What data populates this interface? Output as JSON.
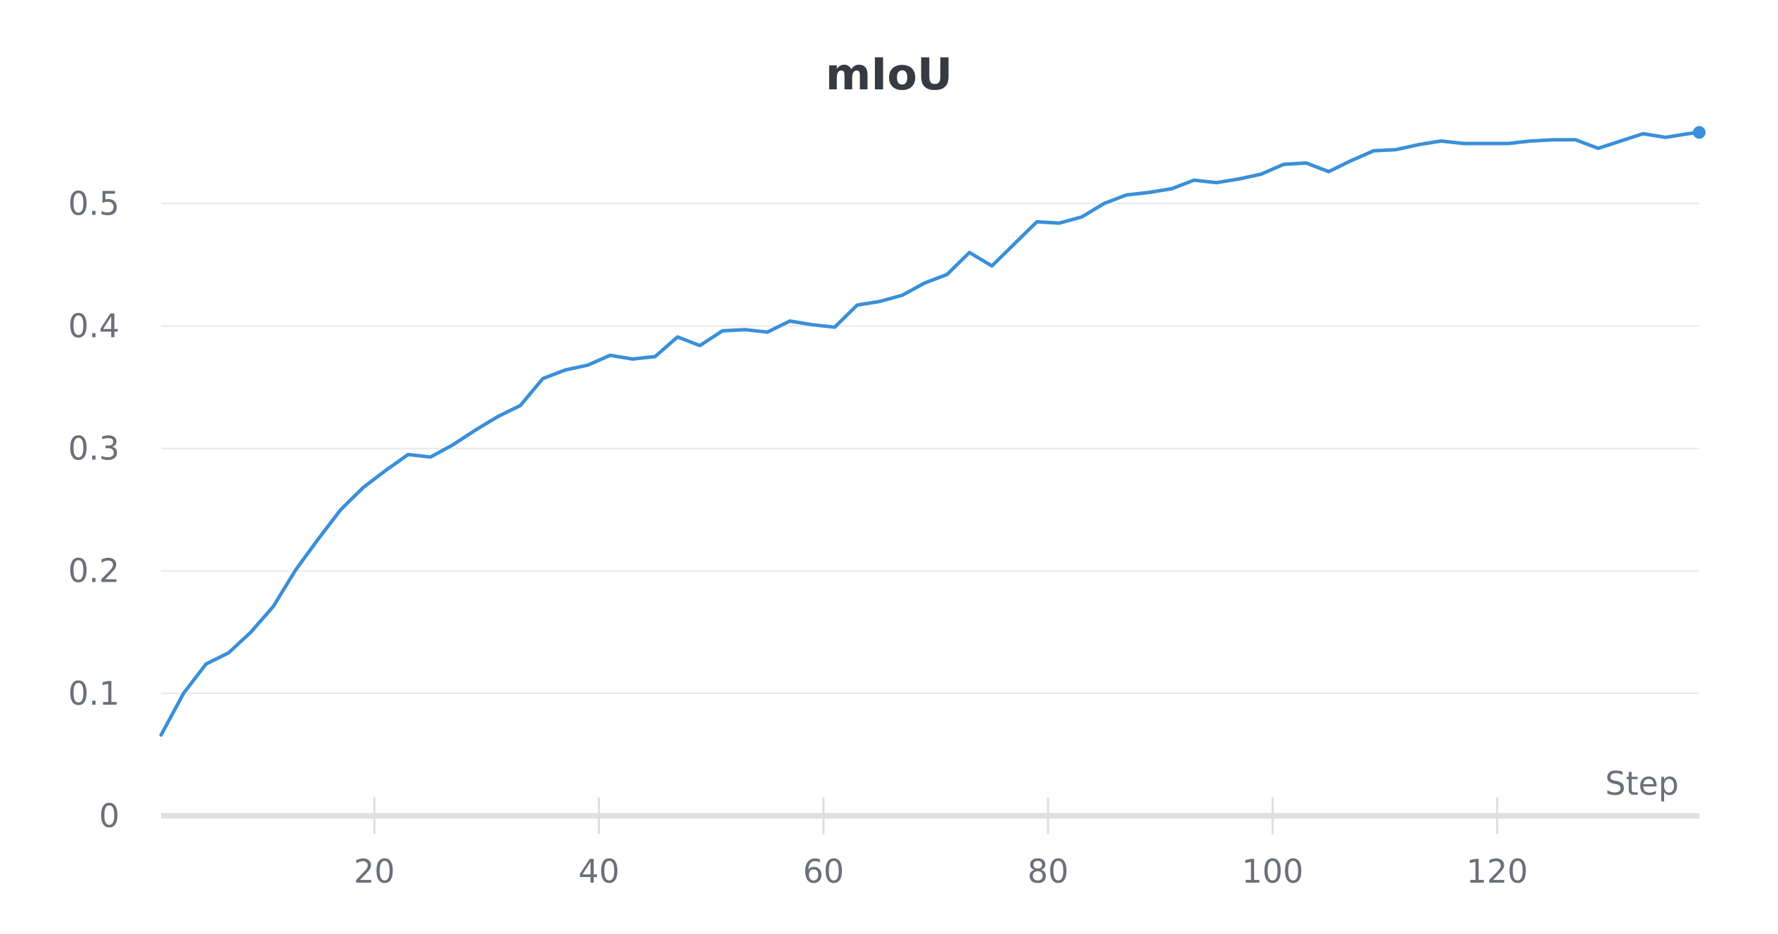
{
  "chart_data": {
    "type": "line",
    "title": "mIoU",
    "xlabel": "Step",
    "ylabel": "",
    "xlim": [
      1,
      138
    ],
    "ylim": [
      0,
      0.58
    ],
    "x_ticks": [
      20,
      40,
      60,
      80,
      100,
      120
    ],
    "y_ticks": [
      0,
      0.1,
      0.2,
      0.3,
      0.4,
      0.5
    ],
    "grid": true,
    "legend": "none",
    "series": [
      {
        "color": "#3a8fd9",
        "x": [
          1,
          3,
          5,
          7,
          9,
          11,
          13,
          15,
          17,
          19,
          21,
          23,
          25,
          27,
          29,
          31,
          33,
          35,
          37,
          39,
          41,
          43,
          45,
          47,
          49,
          51,
          53,
          55,
          57,
          59,
          61,
          63,
          65,
          67,
          69,
          71,
          73,
          75,
          77,
          79,
          81,
          83,
          85,
          87,
          89,
          91,
          93,
          95,
          97,
          99,
          101,
          103,
          105,
          107,
          109,
          111,
          113,
          115,
          117,
          119,
          121,
          123,
          125,
          127,
          129,
          131,
          133,
          135,
          137,
          138
        ],
        "y": [
          0.066,
          0.1,
          0.124,
          0.133,
          0.15,
          0.171,
          0.201,
          0.226,
          0.25,
          0.268,
          0.282,
          0.295,
          0.293,
          0.303,
          0.315,
          0.326,
          0.335,
          0.357,
          0.364,
          0.368,
          0.376,
          0.373,
          0.375,
          0.391,
          0.384,
          0.396,
          0.397,
          0.395,
          0.404,
          0.401,
          0.399,
          0.417,
          0.42,
          0.425,
          0.435,
          0.442,
          0.46,
          0.449,
          0.467,
          0.485,
          0.484,
          0.489,
          0.5,
          0.507,
          0.509,
          0.512,
          0.519,
          0.517,
          0.52,
          0.524,
          0.532,
          0.533,
          0.526,
          0.535,
          0.543,
          0.544,
          0.548,
          0.551,
          0.549,
          0.549,
          0.549,
          0.551,
          0.552,
          0.552,
          0.545,
          0.551,
          0.557,
          0.554,
          0.557,
          0.558
        ]
      }
    ]
  }
}
